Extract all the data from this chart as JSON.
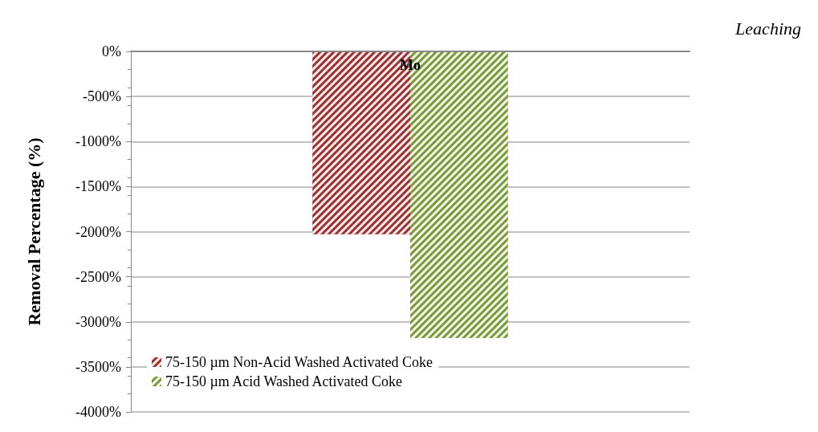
{
  "chart_data": {
    "type": "bar",
    "categories": [
      "Mo"
    ],
    "ylabel": "Removal Percentage (%)",
    "annotations": [
      "Leaching"
    ],
    "series": [
      {
        "name": "75-150 µm Non-Acid Washed Activated Coke",
        "color": "#9e3030",
        "values": [
          -2030
        ]
      },
      {
        "name": "75-150 µm Acid Washed Activated Coke",
        "color": "#7a9a36",
        "values": [
          -3180
        ]
      }
    ],
    "ylim": [
      -4000,
      0
    ],
    "yticks": [
      {
        "value": 0,
        "label": "0%"
      },
      {
        "value": -500,
        "label": "-500%"
      },
      {
        "value": -1000,
        "label": "-1000%"
      },
      {
        "value": -1500,
        "label": "-1500%"
      },
      {
        "value": -2000,
        "label": "-2000%"
      },
      {
        "value": -2500,
        "label": "-2500%"
      },
      {
        "value": -3000,
        "label": "-3000%"
      },
      {
        "value": -3500,
        "label": "-3500%"
      },
      {
        "value": -4000,
        "label": "-4000%"
      }
    ],
    "grid": "y",
    "legend": "bottom left"
  }
}
